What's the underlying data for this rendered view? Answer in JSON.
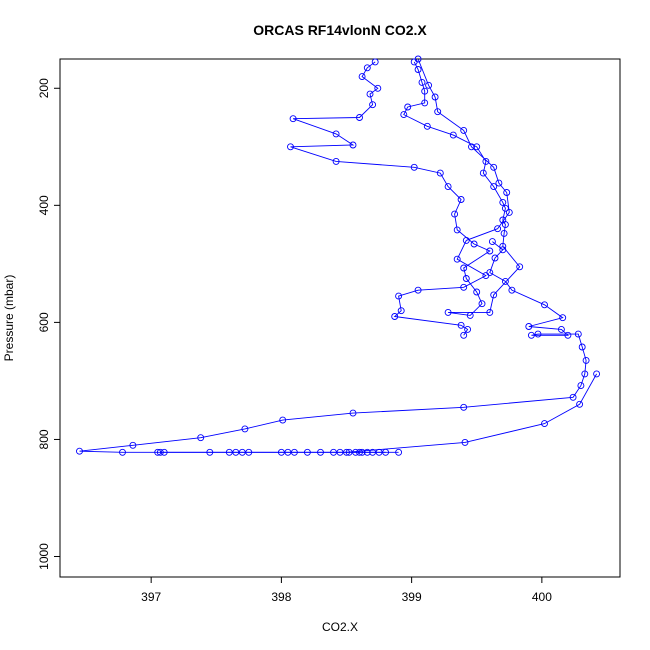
{
  "chart_data": {
    "type": "line",
    "title": "ORCAS RF14vlonN CO2.X",
    "xlabel": "CO2.X",
    "ylabel": "Pressure (mbar)",
    "xlim": [
      396.3,
      400.6
    ],
    "ylim": [
      1035,
      150
    ],
    "y_reversed": true,
    "x_ticks": [
      397,
      398,
      399,
      400
    ],
    "y_ticks": [
      200,
      400,
      600,
      800,
      1000
    ],
    "grid": false,
    "legend": "none",
    "marker": "open-circle",
    "color": "#0000ff",
    "series": [
      {
        "points": [
          [
            398.72,
            155
          ],
          [
            398.66,
            165
          ],
          [
            398.62,
            180
          ],
          [
            398.74,
            200
          ],
          [
            398.68,
            210
          ],
          [
            398.7,
            228
          ],
          [
            398.6,
            250
          ],
          [
            398.09,
            252
          ],
          [
            398.42,
            278
          ],
          [
            398.55,
            297
          ],
          [
            398.07,
            300
          ],
          [
            398.42,
            325
          ],
          [
            399.02,
            335
          ],
          [
            399.22,
            345
          ],
          [
            399.28,
            368
          ],
          [
            399.38,
            390
          ],
          [
            399.33,
            415
          ],
          [
            399.35,
            442
          ],
          [
            399.48,
            466
          ],
          [
            399.6,
            478
          ],
          [
            399.4,
            507
          ],
          [
            399.42,
            525
          ],
          [
            399.5,
            548
          ],
          [
            399.54,
            568
          ],
          [
            399.45,
            588
          ],
          [
            399.28,
            583
          ],
          [
            399.6,
            583
          ],
          [
            399.63,
            553
          ],
          [
            399.83,
            505
          ],
          [
            399.7,
            470
          ],
          [
            399.71,
            448
          ],
          [
            399.72,
            433
          ],
          [
            399.7,
            425
          ],
          [
            399.72,
            405
          ],
          [
            399.7,
            395
          ],
          [
            399.63,
            368
          ],
          [
            399.55,
            345
          ],
          [
            399.57,
            325
          ],
          [
            399.5,
            300
          ],
          [
            399.32,
            280
          ],
          [
            399.12,
            265
          ],
          [
            398.94,
            245
          ],
          [
            398.97,
            232
          ],
          [
            399.1,
            225
          ],
          [
            399.1,
            205
          ],
          [
            399.08,
            190
          ],
          [
            399.05,
            168
          ],
          [
            399.02,
            155
          ]
        ]
      },
      {
        "points": [
          [
            399.05,
            150
          ],
          [
            399.13,
            195
          ],
          [
            399.18,
            215
          ],
          [
            399.2,
            240
          ],
          [
            399.4,
            272
          ],
          [
            399.46,
            300
          ],
          [
            399.63,
            335
          ],
          [
            399.67,
            362
          ],
          [
            399.73,
            378
          ],
          [
            399.75,
            412
          ],
          [
            399.66,
            440
          ],
          [
            399.42,
            460
          ],
          [
            399.35,
            492
          ],
          [
            399.57,
            520
          ],
          [
            399.4,
            540
          ],
          [
            399.05,
            545
          ],
          [
            398.9,
            555
          ],
          [
            398.92,
            580
          ],
          [
            398.87,
            590
          ],
          [
            399.38,
            605
          ],
          [
            399.43,
            612
          ],
          [
            399.4,
            622
          ]
        ]
      },
      {
        "points": [
          [
            399.62,
            462
          ],
          [
            399.7,
            476
          ],
          [
            399.64,
            490
          ],
          [
            399.6,
            515
          ],
          [
            399.72,
            530
          ],
          [
            399.77,
            545
          ],
          [
            400.02,
            570
          ],
          [
            400.16,
            592
          ],
          [
            399.9,
            607
          ],
          [
            400.15,
            612
          ],
          [
            400.2,
            622
          ],
          [
            399.92,
            622
          ],
          [
            399.97,
            620
          ],
          [
            400.28,
            620
          ],
          [
            400.31,
            642
          ],
          [
            400.34,
            665
          ],
          [
            400.33,
            688
          ],
          [
            400.3,
            708
          ],
          [
            400.24,
            728
          ],
          [
            399.4,
            745
          ],
          [
            398.55,
            755
          ],
          [
            398.01,
            767
          ],
          [
            397.72,
            782
          ],
          [
            397.38,
            797
          ],
          [
            396.86,
            810
          ],
          [
            396.45,
            820
          ],
          [
            396.78,
            822
          ],
          [
            397.05,
            822
          ],
          [
            397.6,
            822
          ],
          [
            398.2,
            822
          ],
          [
            398.6,
            822
          ],
          [
            398.9,
            822
          ]
        ]
      },
      {
        "points": [
          [
            398.7,
            822
          ],
          [
            398.4,
            822
          ],
          [
            398.0,
            822
          ],
          [
            397.7,
            822
          ],
          [
            397.45,
            822
          ],
          [
            397.1,
            822
          ],
          [
            397.07,
            822
          ],
          [
            397.65,
            822
          ],
          [
            397.75,
            822
          ],
          [
            398.05,
            822
          ],
          [
            398.1,
            822
          ],
          [
            398.3,
            822
          ],
          [
            398.45,
            822
          ],
          [
            398.52,
            822
          ],
          [
            398.57,
            822
          ],
          [
            398.62,
            822
          ],
          [
            398.66,
            822
          ],
          [
            398.75,
            822
          ],
          [
            398.8,
            822
          ]
        ]
      },
      {
        "points": [
          [
            398.5,
            822
          ],
          [
            399.41,
            805
          ],
          [
            400.02,
            773
          ],
          [
            400.29,
            740
          ],
          [
            400.42,
            688
          ]
        ]
      }
    ]
  }
}
